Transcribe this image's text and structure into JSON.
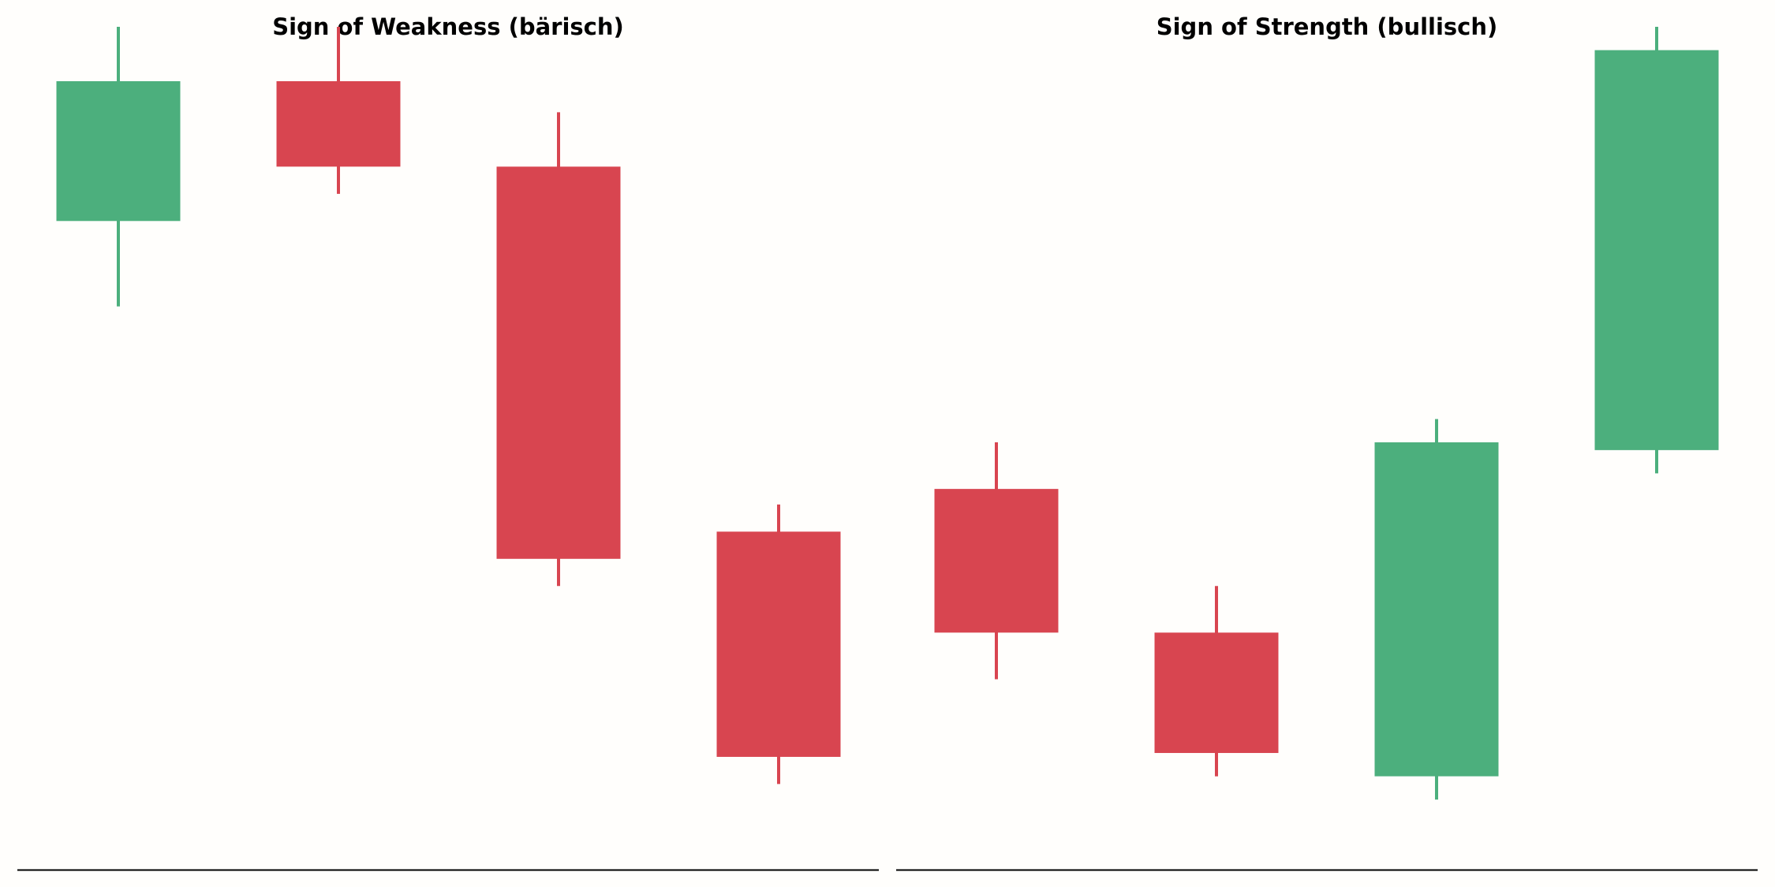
{
  "colors": {
    "bullish": "#4caf7d",
    "bearish": "#d84550",
    "axis": "#000000",
    "background": "#fffefc"
  },
  "chart_data": [
    {
      "type": "candlestick",
      "title": "Sign of Weakness (bärisch)",
      "xlabel": "",
      "ylabel": "",
      "ylim": [
        0,
        100
      ],
      "grid": false,
      "axes_visible": false,
      "candles": [
        {
          "open": 82,
          "close": 100,
          "high": 107,
          "low": 71,
          "direction": "bullish"
        },
        {
          "open": 100,
          "close": 89,
          "high": 107,
          "low": 85.5,
          "direction": "bearish"
        },
        {
          "open": 89,
          "close": 38.5,
          "high": 96,
          "low": 35,
          "direction": "bearish"
        },
        {
          "open": 42,
          "close": 13,
          "high": 45.5,
          "low": 9.5,
          "direction": "bearish"
        }
      ]
    },
    {
      "type": "candlestick",
      "title": "Sign of Strength (bullisch)",
      "xlabel": "",
      "ylabel": "",
      "ylim": [
        0,
        100
      ],
      "grid": false,
      "axes_visible": false,
      "candles": [
        {
          "open": 47.5,
          "close": 29,
          "high": 53.5,
          "low": 23,
          "direction": "bearish"
        },
        {
          "open": 29,
          "close": 13.5,
          "high": 35,
          "low": 10.5,
          "direction": "bearish"
        },
        {
          "open": 10.5,
          "close": 53.5,
          "high": 56.5,
          "low": 7.5,
          "direction": "bullish"
        },
        {
          "open": 52.5,
          "close": 104,
          "high": 107,
          "low": 49.5,
          "direction": "bullish"
        }
      ]
    }
  ]
}
